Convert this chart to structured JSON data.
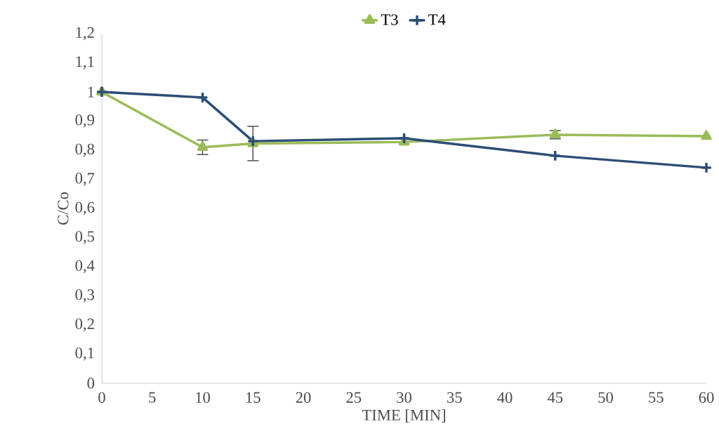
{
  "chart_data": {
    "type": "line",
    "xlabel": "TIME [MIN]",
    "ylabel": "C/Co",
    "x": [
      0,
      10,
      15,
      30,
      45,
      60
    ],
    "series": [
      {
        "name": "T3",
        "color": "#9bbb59",
        "marker": "triangle",
        "values": [
          1.0,
          0.81,
          0.823,
          0.828,
          0.853,
          0.848
        ],
        "errors": [
          null,
          0.025,
          0.059,
          null,
          0.014,
          null
        ]
      },
      {
        "name": "T4",
        "color": "#2c4d75",
        "marker": "cross",
        "values": [
          1.0,
          0.981,
          0.831,
          0.841,
          0.781,
          0.74
        ]
      }
    ],
    "xlim": [
      0,
      60
    ],
    "xticks": [
      0,
      5,
      10,
      15,
      20,
      25,
      30,
      35,
      40,
      45,
      50,
      55,
      60
    ],
    "ylim": [
      0,
      1.2
    ],
    "yticks": [
      {
        "value": 0,
        "label": "0"
      },
      {
        "value": 0.1,
        "label": "0,1"
      },
      {
        "value": 0.2,
        "label": "0,2"
      },
      {
        "value": 0.3,
        "label": "0,3"
      },
      {
        "value": 0.4,
        "label": "0,4"
      },
      {
        "value": 0.5,
        "label": "0,5"
      },
      {
        "value": 0.6,
        "label": "0,6"
      },
      {
        "value": 0.7,
        "label": "0,7"
      },
      {
        "value": 0.8,
        "label": "0,8"
      },
      {
        "value": 0.9,
        "label": "0,9"
      },
      {
        "value": 1,
        "label": "1"
      },
      {
        "value": 1.1,
        "label": "1,1"
      },
      {
        "value": 1.2,
        "label": "1,2"
      }
    ],
    "grid": false,
    "legend": "top",
    "line_style": "solid"
  }
}
